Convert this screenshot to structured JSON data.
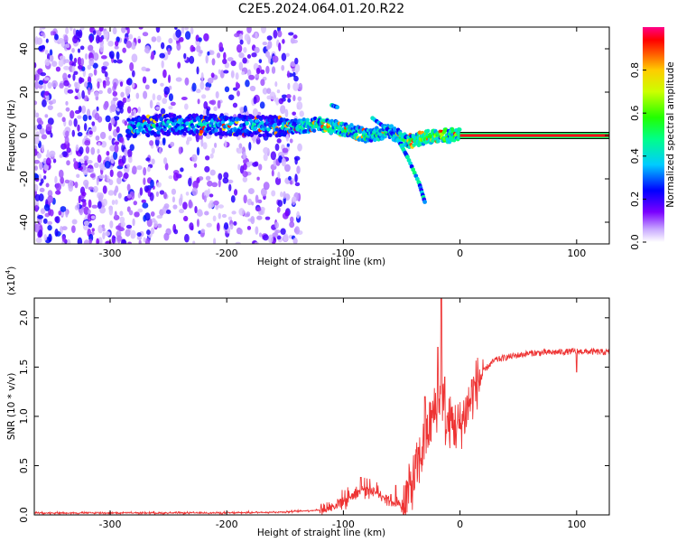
{
  "figure": {
    "title": "C2E5.2024.064.01.20.R22"
  },
  "chart_data": [
    {
      "type": "heatmap",
      "xlabel": "Height of straight line (km)",
      "ylabel": "Frequency (Hz)",
      "xlim": [
        -365,
        128
      ],
      "ylim": [
        -50,
        50
      ],
      "xticks": [
        -300,
        -200,
        -100,
        0,
        100
      ],
      "yticks": [
        -40,
        -20,
        0,
        20,
        40
      ],
      "colorbar": {
        "label": "Normalized spectral amplitude",
        "range": [
          0,
          1
        ],
        "ticks": [
          "0.0",
          "0.2",
          "0.4",
          "0.6",
          "0.8"
        ]
      },
      "ridge": {
        "description_points": [
          {
            "x": -280,
            "y": 4
          },
          {
            "x": -250,
            "y": 5
          },
          {
            "x": -200,
            "y": 5
          },
          {
            "x": -150,
            "y": 4
          },
          {
            "x": -120,
            "y": 5
          },
          {
            "x": -100,
            "y": 3
          },
          {
            "x": -80,
            "y": 0
          },
          {
            "x": -60,
            "y": 2
          },
          {
            "x": -45,
            "y": -3
          },
          {
            "x": -30,
            "y": -1
          },
          {
            "x": -10,
            "y": 0
          },
          {
            "x": 0,
            "y": 0
          },
          {
            "x": 128,
            "y": 0
          }
        ],
        "branches": [
          {
            "x": [
              -75,
              -60,
              -52,
              -45,
              -35,
              -30
            ],
            "y": [
              8,
              2,
              -3,
              -10,
              -22,
              -31
            ]
          },
          {
            "x": [
              -110,
              -105
            ],
            "y": [
              14,
              13
            ]
          }
        ]
      },
      "noise_region": {
        "x_from": -365,
        "x_to": -135
      },
      "steady_band": {
        "x_from": 0,
        "x_to": 128,
        "y": 0,
        "peak_amplitude": 0.95
      }
    },
    {
      "type": "line",
      "xlabel": "Height of straight line (km)",
      "ylabel": "SNR (10 * v/v)",
      "y_multiplier": "(x10^4)",
      "y_multiplier_base": "(x10",
      "y_multiplier_exp": "4",
      "y_multiplier_close": ")",
      "xlim": [
        -365,
        128
      ],
      "ylim": [
        0,
        2.2
      ],
      "xticks": [
        -300,
        -200,
        -100,
        0,
        100
      ],
      "yticks": [
        "0.0",
        "0.5",
        "1.0",
        "1.5",
        "2.0"
      ],
      "series": [
        {
          "color": "#ee3333",
          "x": [
            -365,
            -300,
            -200,
            -150,
            -120,
            -110,
            -100,
            -90,
            -80,
            -70,
            -60,
            -50,
            -45,
            -40,
            -35,
            -30,
            -25,
            -20,
            -16,
            -12,
            -8,
            -4,
            0,
            5,
            10,
            15,
            20,
            25,
            30,
            40,
            50,
            60,
            80,
            100,
            128
          ],
          "y": [
            0.02,
            0.02,
            0.02,
            0.03,
            0.05,
            0.08,
            0.15,
            0.22,
            0.28,
            0.22,
            0.15,
            0.08,
            0.2,
            0.35,
            0.55,
            0.75,
            0.95,
            1.1,
            1.3,
            0.9,
            0.95,
            0.9,
            0.9,
            1.05,
            1.2,
            1.35,
            1.45,
            1.52,
            1.57,
            1.6,
            1.62,
            1.64,
            1.65,
            1.66,
            1.65
          ],
          "spikes": [
            {
              "x": -16,
              "y": 2.2
            },
            {
              "x": -19,
              "y": 1.7
            },
            {
              "x": -13,
              "y": 1.4
            },
            {
              "x": -55,
              "y": 0.3
            },
            {
              "x": -85,
              "y": 0.38
            },
            {
              "x": -30,
              "y": 1.2
            },
            {
              "x": 100,
              "y": 1.45
            }
          ]
        }
      ]
    }
  ],
  "colors": {
    "noise": "#7a33ee",
    "line": "#ee3333"
  }
}
